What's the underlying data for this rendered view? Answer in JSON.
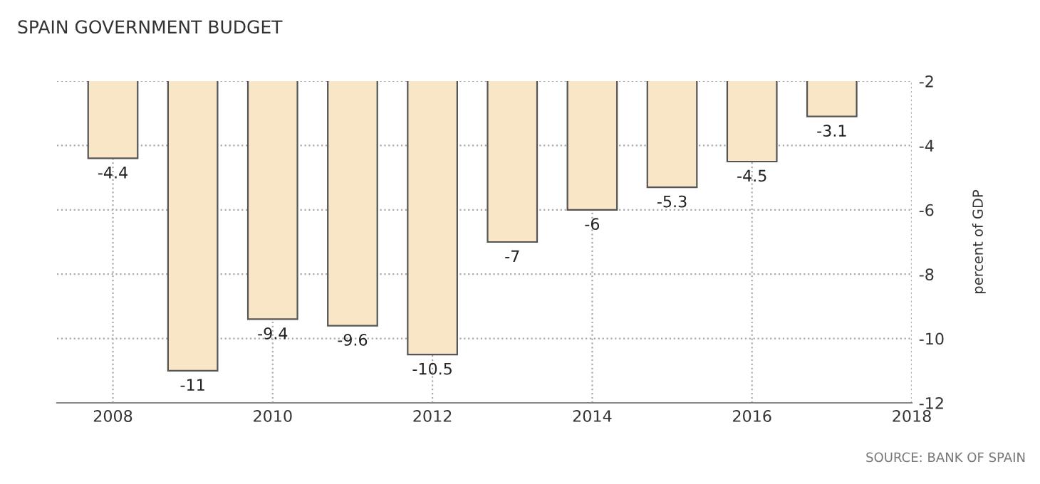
{
  "chart_data": {
    "type": "bar",
    "title": "SPAIN GOVERNMENT BUDGET",
    "ylabel": "percent of GDP",
    "x": [
      2008,
      2009,
      2010,
      2011,
      2012,
      2013,
      2014,
      2015,
      2016,
      2017
    ],
    "values": [
      -4.4,
      -11,
      -9.4,
      -9.6,
      -10.5,
      -7,
      -6,
      -5.3,
      -4.5,
      -3.1
    ],
    "color": "#f8e6c6",
    "xlim": [
      2007.3,
      2018
    ],
    "xticks": [
      2008,
      2010,
      2012,
      2014,
      2016,
      2018
    ],
    "ylim": [
      -12,
      -2
    ],
    "yticks": [
      -2,
      -4,
      -6,
      -8,
      -10,
      -12
    ],
    "grid": true,
    "data_labels": true,
    "annotations": [
      "SOURCE: BANK OF SPAIN"
    ]
  }
}
